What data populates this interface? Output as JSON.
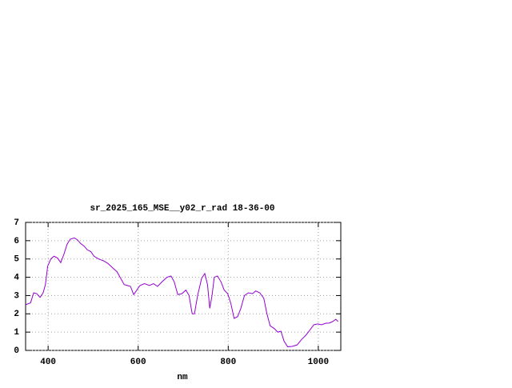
{
  "chart_data": {
    "type": "line",
    "title": "sr_2025_165_MSE__y02_r_rad 18-36-00",
    "x_label": "nm",
    "x": [
      350,
      361,
      368,
      375,
      382,
      389,
      394,
      399,
      406,
      413,
      421,
      428,
      435,
      442,
      449,
      458,
      465,
      472,
      480,
      487,
      495,
      502,
      512,
      523,
      533,
      544,
      553,
      561,
      569,
      576,
      583,
      590,
      597,
      604,
      614,
      625,
      634,
      643,
      653,
      664,
      673,
      680,
      688,
      697,
      706,
      713,
      720,
      725,
      732,
      741,
      748,
      754,
      759,
      764,
      769,
      776,
      784,
      791,
      799,
      806,
      813,
      821,
      828,
      836,
      845,
      854,
      861,
      870,
      879,
      886,
      893,
      902,
      910,
      917,
      924,
      932,
      942,
      953,
      963,
      972,
      981,
      990,
      999,
      1007,
      1016,
      1025,
      1032,
      1039,
      1044
    ],
    "values": [
      2.5,
      2.6,
      3.15,
      3.1,
      2.9,
      3.15,
      3.6,
      4.6,
      5.0,
      5.15,
      5.05,
      4.8,
      5.25,
      5.8,
      6.08,
      6.15,
      6.05,
      5.85,
      5.7,
      5.5,
      5.4,
      5.15,
      5.0,
      4.9,
      4.75,
      4.5,
      4.3,
      3.95,
      3.6,
      3.55,
      3.5,
      3.05,
      3.3,
      3.55,
      3.65,
      3.55,
      3.65,
      3.5,
      3.75,
      4.0,
      4.07,
      3.75,
      3.05,
      3.1,
      3.3,
      3.0,
      2.0,
      2.0,
      3.0,
      3.95,
      4.2,
      3.6,
      2.3,
      3.0,
      4.0,
      4.07,
      3.75,
      3.3,
      3.1,
      2.55,
      1.75,
      1.85,
      2.3,
      3.0,
      3.15,
      3.1,
      3.25,
      3.15,
      2.85,
      2.0,
      1.35,
      1.2,
      1.0,
      1.05,
      0.5,
      0.2,
      0.22,
      0.3,
      0.6,
      0.82,
      1.1,
      1.4,
      1.45,
      1.4,
      1.48,
      1.5,
      1.58,
      1.7,
      1.58
    ],
    "color": "#9400d3",
    "xlim": [
      350,
      1050
    ],
    "xticks": [
      400,
      600,
      800,
      1000
    ],
    "ylim": [
      0,
      7
    ],
    "yticks": [
      0,
      1,
      2,
      3,
      4,
      5,
      6,
      7
    ],
    "grid": true
  }
}
